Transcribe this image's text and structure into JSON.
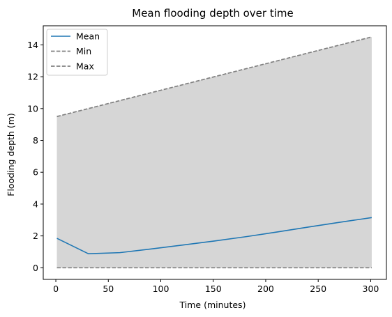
{
  "chart_data": {
    "type": "line",
    "title": "Mean flooding depth over time",
    "xlabel": "Time (minutes)",
    "ylabel": "Flooding depth (m)",
    "xlim": [
      -12,
      315
    ],
    "ylim": [
      -0.73,
      15.2
    ],
    "x_ticks": [
      0,
      50,
      100,
      150,
      200,
      250,
      300
    ],
    "y_ticks": [
      0,
      2,
      4,
      6,
      8,
      10,
      12,
      14
    ],
    "grid": false,
    "legend": "top-left",
    "x": [
      1,
      31,
      61,
      91,
      121,
      151,
      181,
      211,
      241,
      271,
      301
    ],
    "series": [
      {
        "name": "Mean",
        "style": "solid",
        "color": "#1f77b4",
        "values": [
          1.85,
          0.88,
          0.95,
          1.18,
          1.43,
          1.68,
          1.95,
          2.25,
          2.56,
          2.86,
          3.15
        ]
      },
      {
        "name": "Min",
        "style": "dashed",
        "color": "#808080",
        "values": [
          0,
          0,
          0,
          0,
          0,
          0,
          0,
          0,
          0,
          0,
          0
        ]
      },
      {
        "name": "Max",
        "style": "dashed",
        "color": "#808080",
        "values": [
          9.5,
          10.0,
          10.5,
          11.0,
          11.5,
          12.0,
          12.5,
          13.0,
          13.5,
          14.0,
          14.5
        ]
      }
    ],
    "fill_between": {
      "lower_series": "Min",
      "upper_series": "Max",
      "color": "#d6d6d6"
    }
  }
}
